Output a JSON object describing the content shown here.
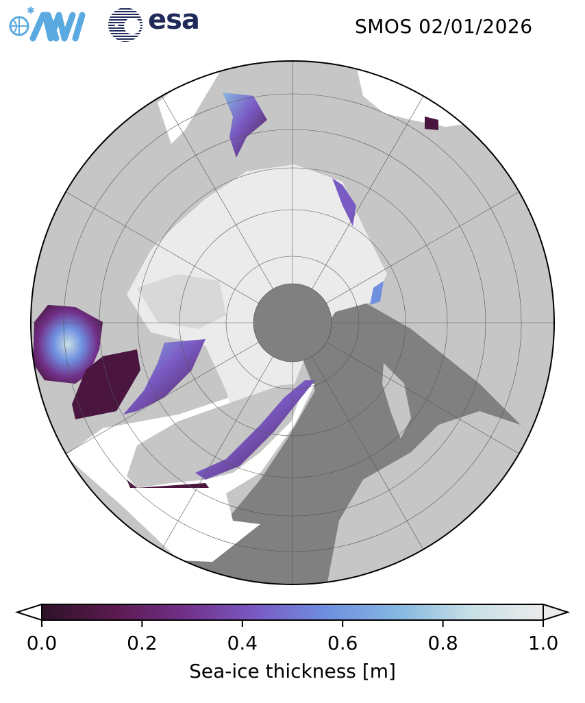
{
  "title": "SMOS 02/01/2026",
  "logos": [
    {
      "name": "AWI",
      "color": "#5aa9e0"
    },
    {
      "name": "esa",
      "color": "#1f2a5a"
    }
  ],
  "map": {
    "projection": "north polar stereographic",
    "variable": "sea-ice thickness",
    "colors": {
      "land": "#c6c6c6",
      "open_ocean": "#808080",
      "thick_ice": "#ebebeb",
      "no_data": "#ffffff",
      "pole_hole": "#808080"
    }
  },
  "colorbar": {
    "label": "Sea-ice thickness [m]",
    "ticks": [
      "0.0",
      "0.2",
      "0.4",
      "0.6",
      "0.8",
      "1.0"
    ],
    "range": [
      0.0,
      1.0
    ],
    "extend": "both",
    "colormap": [
      "#2d1228",
      "#5a1a4e",
      "#72308a",
      "#7a5bc4",
      "#6f90e0",
      "#86b8e0",
      "#c8e0e6",
      "#ebebeb"
    ]
  }
}
